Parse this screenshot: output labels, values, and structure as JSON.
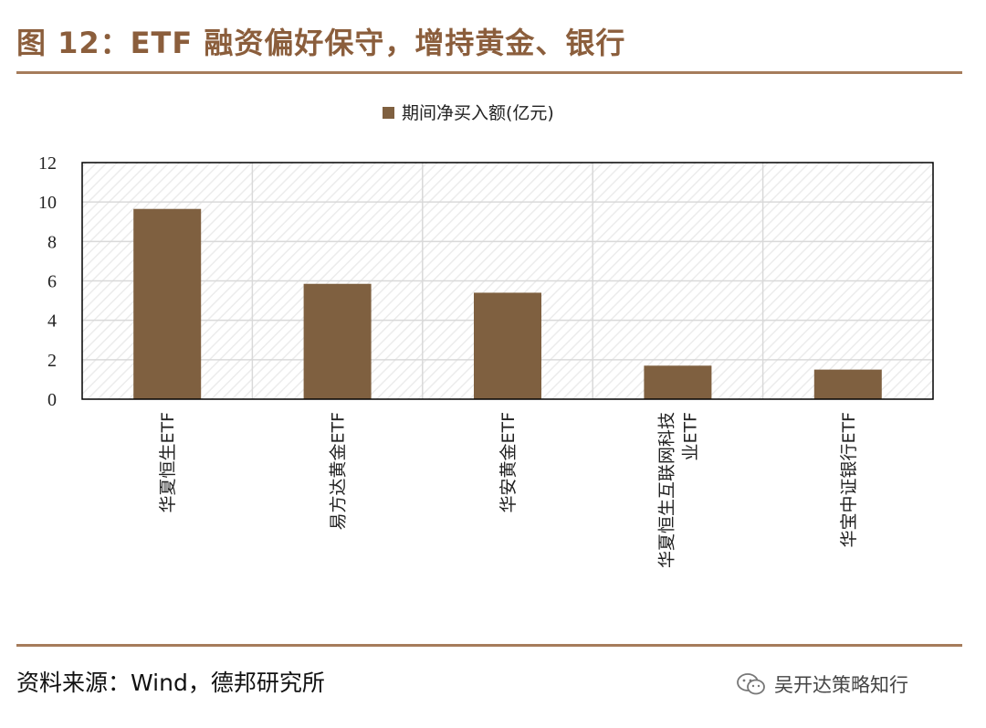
{
  "figure": {
    "title": "图 12：ETF 融资偏好保守，增持黄金、银行",
    "source": "资料来源：Wind，德邦研究所",
    "watermark": "吴开达策略知行"
  },
  "colors": {
    "accent": "#8b5e3c",
    "rule": "#a67c5b",
    "bar": "#7f6040",
    "grid": "#d9d9d9",
    "hatch": "#ececec"
  },
  "chart_data": {
    "type": "bar",
    "title": "",
    "xlabel": "",
    "ylabel": "",
    "legend": {
      "position": "top",
      "entries": [
        "期间净买入额(亿元)"
      ]
    },
    "grid": true,
    "ylim": [
      0,
      12
    ],
    "yticks": [
      0,
      2,
      4,
      6,
      8,
      10,
      12
    ],
    "categories": [
      "华夏恒生ETF",
      "易方达黄金ETF",
      "华安黄金ETF",
      "华夏恒生互联网科技业ETF",
      "华宝中证银行ETF"
    ],
    "series": [
      {
        "name": "期间净买入额(亿元)",
        "values": [
          9.65,
          5.85,
          5.4,
          1.7,
          1.5
        ]
      }
    ]
  }
}
